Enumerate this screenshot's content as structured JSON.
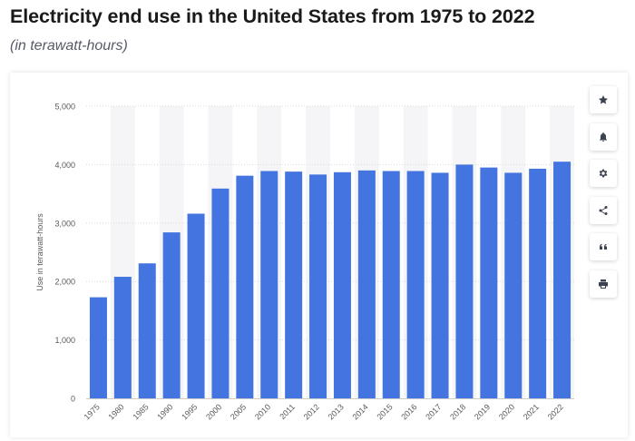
{
  "header": {
    "title": "Electricity end use in the United States from 1975 to 2022",
    "subtitle": "(in terawatt-hours)"
  },
  "sidebar": {
    "buttons": [
      {
        "icon": "star-icon",
        "label": "Favorite"
      },
      {
        "icon": "bell-icon",
        "label": "Notifications"
      },
      {
        "icon": "gear-icon",
        "label": "Settings"
      },
      {
        "icon": "share-icon",
        "label": "Share"
      },
      {
        "icon": "quote-icon",
        "label": "Cite"
      },
      {
        "icon": "print-icon",
        "label": "Print"
      }
    ]
  },
  "colors": {
    "bar": "#4474e0",
    "band": "#f5f5f7",
    "grid": "#d9d9d9",
    "tick_text": "#595959"
  },
  "chart_data": {
    "type": "bar",
    "title": "Electricity end use in the United States from 1975 to 2022",
    "subtitle": "(in terawatt-hours)",
    "xlabel": "",
    "ylabel": "Use in terawatt-hours",
    "categories": [
      "1975",
      "1980",
      "1985",
      "1990",
      "1995",
      "2000",
      "2005",
      "2010",
      "2011",
      "2012",
      "2013",
      "2014",
      "2015",
      "2016",
      "2017",
      "2018",
      "2019",
      "2020",
      "2021",
      "2022"
    ],
    "values": [
      1730,
      2080,
      2310,
      2840,
      3160,
      3590,
      3810,
      3890,
      3880,
      3830,
      3870,
      3900,
      3890,
      3890,
      3860,
      4000,
      3950,
      3860,
      3930,
      4050
    ],
    "ylim": [
      0,
      5000
    ],
    "yticks": [
      0,
      1000,
      2000,
      3000,
      4000,
      5000
    ],
    "ytick_labels": [
      "0",
      "1,000",
      "2,000",
      "3,000",
      "4,000",
      "5,000"
    ],
    "grid": true,
    "legend": "none"
  }
}
